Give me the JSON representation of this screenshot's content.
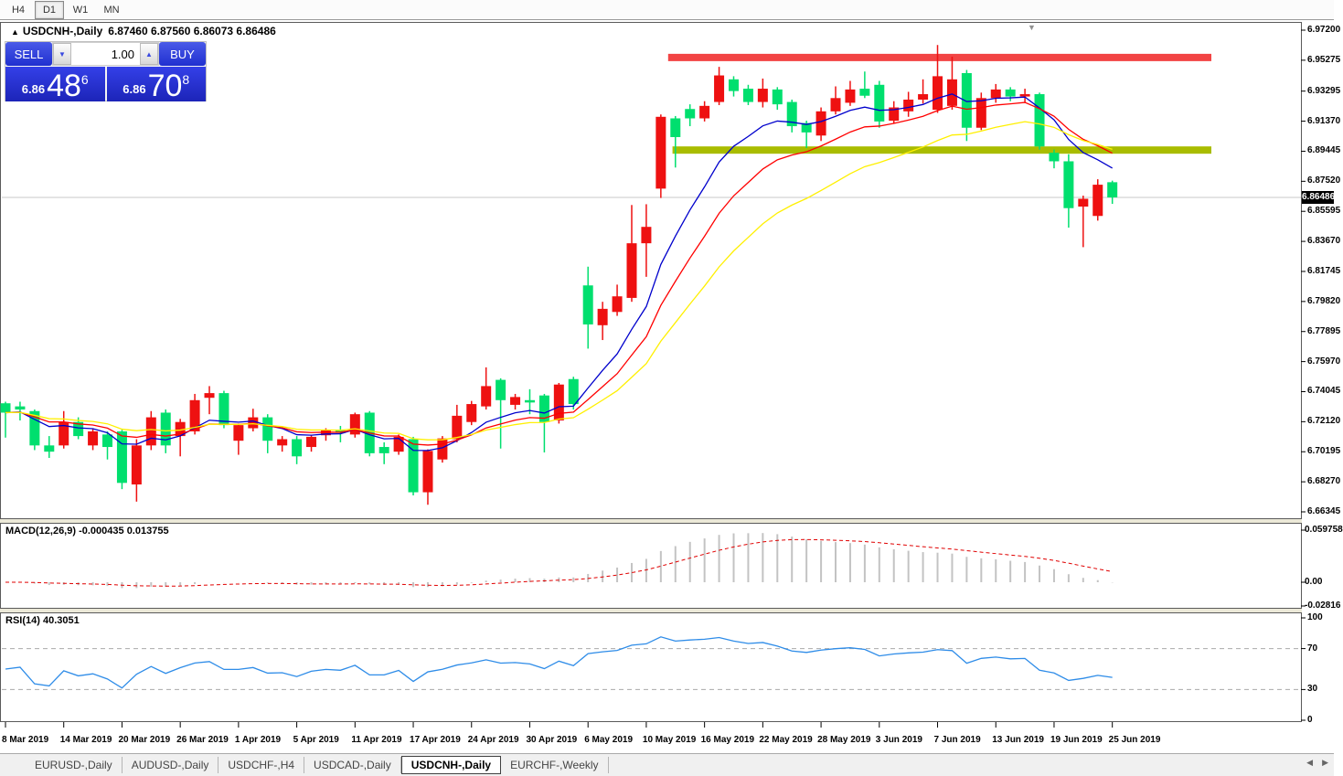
{
  "toolbar": {
    "periods": [
      {
        "label": "H4",
        "active": false
      },
      {
        "label": "D1",
        "active": true
      },
      {
        "label": "W1",
        "active": false
      },
      {
        "label": "MN",
        "active": false
      }
    ]
  },
  "chart": {
    "collapse_arrow": "▲",
    "symbol_title": "USDCNH-,Daily",
    "ohlc_text": "6.87460 6.87560 6.86073 6.86486",
    "shift_marker": "▼"
  },
  "trade_panel": {
    "sell_label": "SELL",
    "buy_label": "BUY",
    "volume": "1.00",
    "spinner_down": "▼",
    "spinner_up": "▲",
    "sell_price_prefix": "6.86",
    "sell_price_main": "48",
    "sell_price_sup": "6",
    "buy_price_prefix": "6.86",
    "buy_price_main": "70",
    "buy_price_sup": "8"
  },
  "price_axis": {
    "ticks": [
      "6.97200",
      "6.95275",
      "6.93295",
      "6.91370",
      "6.89445",
      "6.87520",
      "6.85595",
      "6.83670",
      "6.81745",
      "6.79820",
      "6.77895",
      "6.75970",
      "6.74045",
      "6.72120",
      "6.70195",
      "6.68270",
      "6.66345"
    ],
    "current_price_label": "6.86486"
  },
  "date_axis": {
    "labels": [
      {
        "text": "8 Mar 2019",
        "bar": 0
      },
      {
        "text": "14 Mar 2019",
        "bar": 4
      },
      {
        "text": "20 Mar 2019",
        "bar": 8
      },
      {
        "text": "26 Mar 2019",
        "bar": 12
      },
      {
        "text": "1 Apr 2019",
        "bar": 16
      },
      {
        "text": "5 Apr 2019",
        "bar": 20
      },
      {
        "text": "11 Apr 2019",
        "bar": 24
      },
      {
        "text": "17 Apr 2019",
        "bar": 28
      },
      {
        "text": "24 Apr 2019",
        "bar": 32
      },
      {
        "text": "30 Apr 2019",
        "bar": 36
      },
      {
        "text": "6 May 2019",
        "bar": 40
      },
      {
        "text": "10 May 2019",
        "bar": 44
      },
      {
        "text": "16 May 2019",
        "bar": 48
      },
      {
        "text": "22 May 2019",
        "bar": 52
      },
      {
        "text": "28 May 2019",
        "bar": 56
      },
      {
        "text": "3 Jun 2019",
        "bar": 60
      },
      {
        "text": "7 Jun 2019",
        "bar": 64
      },
      {
        "text": "13 Jun 2019",
        "bar": 68
      },
      {
        "text": "19 Jun 2019",
        "bar": 72
      },
      {
        "text": "25 Jun 2019",
        "bar": 76
      }
    ]
  },
  "chart_data": {
    "type": "candlestick",
    "symbol": "USDCNH-",
    "timeframe": "Daily",
    "title": "USDCNH-,Daily",
    "ylim": [
      6.66345,
      6.972
    ],
    "up_color": "#ee1111",
    "down_color": "#00df6e",
    "ohlc_current": {
      "open": "6.87460",
      "high": "6.87560",
      "low": "6.86073",
      "close": "6.86486"
    },
    "current_price": 6.86486,
    "bars": [
      [
        6.733,
        6.734,
        6.711,
        6.727
      ],
      [
        6.731,
        6.734,
        6.722,
        6.729
      ],
      [
        6.728,
        6.729,
        6.703,
        6.706
      ],
      [
        6.706,
        6.712,
        6.698,
        6.702
      ],
      [
        6.706,
        6.728,
        6.704,
        6.721
      ],
      [
        6.721,
        6.724,
        6.71,
        6.712
      ],
      [
        6.706,
        6.717,
        6.703,
        6.715
      ],
      [
        6.713,
        6.715,
        6.697,
        6.705
      ],
      [
        6.715,
        6.716,
        6.678,
        6.682
      ],
      [
        6.681,
        6.71,
        6.67,
        6.706
      ],
      [
        6.706,
        6.728,
        6.703,
        6.724
      ],
      [
        6.727,
        6.729,
        6.701,
        6.706
      ],
      [
        6.712,
        6.723,
        6.699,
        6.721
      ],
      [
        6.715,
        6.739,
        6.713,
        6.735
      ],
      [
        6.7365,
        6.744,
        6.726,
        6.7395
      ],
      [
        6.7395,
        6.741,
        6.717,
        6.719
      ],
      [
        6.709,
        6.72,
        6.7,
        6.719
      ],
      [
        6.717,
        6.7295,
        6.715,
        6.724
      ],
      [
        6.724,
        6.726,
        6.701,
        6.709
      ],
      [
        6.706,
        6.712,
        6.702,
        6.71
      ],
      [
        6.71,
        6.712,
        6.694,
        6.699
      ],
      [
        6.705,
        6.7125,
        6.702,
        6.7115
      ],
      [
        6.7125,
        6.717,
        6.709,
        6.716
      ],
      [
        6.7155,
        6.7185,
        6.708,
        6.714
      ],
      [
        6.713,
        6.727,
        6.711,
        6.726
      ],
      [
        6.727,
        6.728,
        6.699,
        6.701
      ],
      [
        6.705,
        6.708,
        6.694,
        6.701
      ],
      [
        6.702,
        6.713,
        6.7,
        6.7115
      ],
      [
        6.71,
        6.7115,
        6.674,
        6.676
      ],
      [
        6.676,
        6.7035,
        6.668,
        6.7025
      ],
      [
        6.697,
        6.712,
        6.695,
        6.7105
      ],
      [
        6.71,
        6.732,
        6.708,
        6.725
      ],
      [
        6.721,
        6.7345,
        6.719,
        6.7325
      ],
      [
        6.731,
        6.756,
        6.729,
        6.744
      ],
      [
        6.748,
        6.749,
        6.704,
        6.735
      ],
      [
        6.732,
        6.739,
        6.729,
        6.737
      ],
      [
        6.735,
        6.742,
        6.726,
        6.7335
      ],
      [
        6.738,
        6.739,
        6.7015,
        6.721
      ],
      [
        6.722,
        6.746,
        6.72,
        6.745
      ],
      [
        6.7485,
        6.75,
        6.729,
        6.7325
      ],
      [
        6.8085,
        6.8205,
        6.768,
        6.7835
      ],
      [
        6.783,
        6.798,
        6.7735,
        6.7935
      ],
      [
        6.7915,
        6.809,
        6.789,
        6.8015
      ],
      [
        6.8005,
        6.86,
        6.798,
        6.8355
      ],
      [
        6.8355,
        6.8605,
        6.814,
        6.846
      ],
      [
        6.8705,
        6.918,
        6.8645,
        6.9165
      ],
      [
        6.9155,
        6.917,
        6.884,
        6.9035
      ],
      [
        6.9215,
        6.9245,
        6.9105,
        6.9155
      ],
      [
        6.9155,
        6.9265,
        6.9135,
        6.9235
      ],
      [
        6.926,
        6.9485,
        6.924,
        6.943
      ],
      [
        6.9405,
        6.9425,
        6.9295,
        6.933
      ],
      [
        6.9345,
        6.937,
        6.924,
        6.926
      ],
      [
        6.926,
        6.941,
        6.9225,
        6.9345
      ],
      [
        6.934,
        6.9355,
        6.921,
        6.9245
      ],
      [
        6.926,
        6.9275,
        6.9065,
        6.9105
      ],
      [
        6.9125,
        6.914,
        6.8965,
        6.9065
      ],
      [
        6.9045,
        6.9225,
        6.901,
        6.92
      ],
      [
        6.92,
        6.936,
        6.918,
        6.9285
      ],
      [
        6.9255,
        6.9395,
        6.9235,
        6.934
      ],
      [
        6.9345,
        6.9455,
        6.9285,
        6.93
      ],
      [
        6.937,
        6.9395,
        6.9095,
        6.9135
      ],
      [
        6.914,
        6.9265,
        6.912,
        6.9225
      ],
      [
        6.92,
        6.9325,
        6.9165,
        6.9275
      ],
      [
        6.9275,
        6.9405,
        6.925,
        6.931
      ],
      [
        6.921,
        6.9625,
        6.919,
        6.9425
      ],
      [
        6.9235,
        6.955,
        6.921,
        6.9405
      ],
      [
        6.9445,
        6.9465,
        6.901,
        6.9095
      ],
      [
        6.9095,
        6.932,
        6.908,
        6.9285
      ],
      [
        6.9285,
        6.9375,
        6.9255,
        6.934
      ],
      [
        6.934,
        6.9355,
        6.9265,
        6.9295
      ],
      [
        6.9295,
        6.9345,
        6.9255,
        6.931
      ],
      [
        6.931,
        6.932,
        6.8955,
        6.8975
      ],
      [
        6.8935,
        6.8955,
        6.8835,
        6.888
      ],
      [
        6.888,
        6.8925,
        6.8455,
        6.858
      ],
      [
        6.859,
        6.866,
        6.833,
        6.864
      ],
      [
        6.853,
        6.8765,
        6.85,
        6.873
      ],
      [
        6.8746,
        6.8756,
        6.86073,
        6.86486
      ]
    ],
    "moving_averages": [
      {
        "period": 8,
        "color": "#0000cc"
      },
      {
        "period": 13,
        "color": "#ff0000"
      },
      {
        "period": 21,
        "color": "#fff000"
      }
    ],
    "hlines": [
      {
        "name": "resistance-band",
        "price": 6.9545,
        "color": "#f24444",
        "thickness": 8,
        "from_bar": 45.5,
        "to_bar": 82.8
      },
      {
        "name": "support-band",
        "price": 6.8952,
        "color": "#a9bc00",
        "thickness": 8,
        "from_bar": 45.8,
        "to_bar": 82.8
      }
    ]
  },
  "macd": {
    "label": "MACD(12,26,9)",
    "values": "-0.000435 0.013755",
    "fast": 12,
    "slow": 26,
    "signal": 9,
    "hist_color": "#c3c3c3",
    "signal_color": "#e00000",
    "ticks": [
      {
        "label": "0.059758",
        "value": 0.059758
      },
      {
        "label": "0.00",
        "value": 0
      },
      {
        "label": "-0.02816",
        "value": -0.02816
      }
    ]
  },
  "rsi": {
    "label": "RSI(14)",
    "value": "40.3051",
    "period": 14,
    "line_color": "#2e8ce8",
    "levels": [
      70,
      30
    ],
    "ticks": [
      {
        "label": "100",
        "value": 100
      },
      {
        "label": "70",
        "value": 70
      },
      {
        "label": "30",
        "value": 30
      },
      {
        "label": "0",
        "value": 0
      }
    ]
  },
  "tabs": {
    "items": [
      {
        "label": "EURUSD-,Daily",
        "active": false
      },
      {
        "label": "AUDUSD-,Daily",
        "active": false
      },
      {
        "label": "USDCHF-,H4",
        "active": false
      },
      {
        "label": "USDCAD-,Daily",
        "active": false
      },
      {
        "label": "USDCNH-,Daily",
        "active": true
      },
      {
        "label": "EURCHF-,Weekly",
        "active": false
      }
    ],
    "scroll_left": "◀",
    "scroll_right": "▶"
  }
}
